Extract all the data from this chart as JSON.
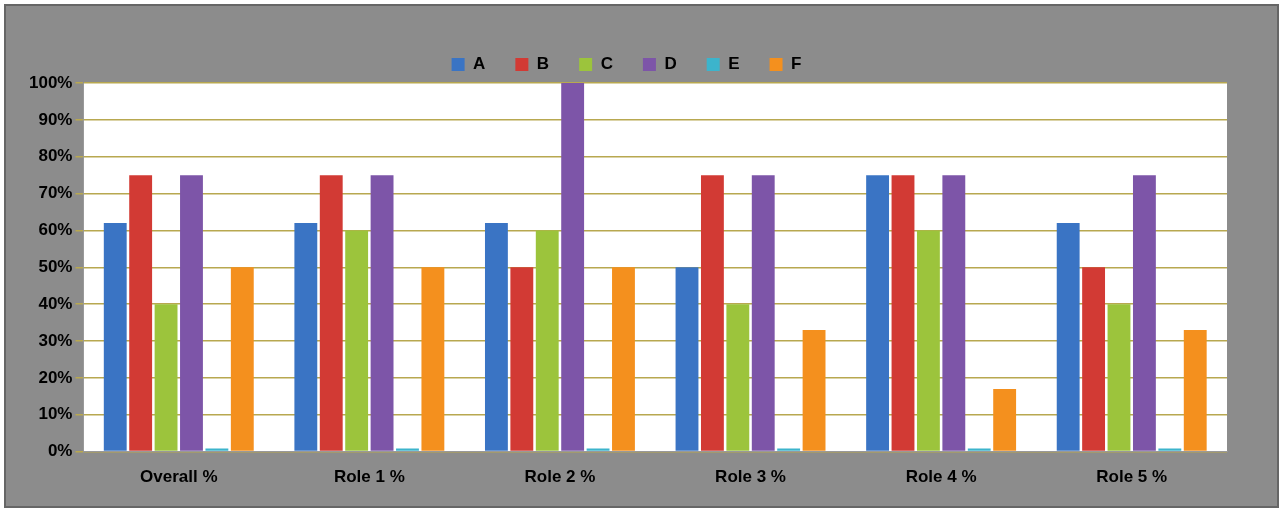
{
  "chart_data": {
    "type": "bar",
    "categories": [
      "Overall %",
      "Role 1 %",
      "Role 2 %",
      "Role 3 %",
      "Role 4 %",
      "Role 5 %"
    ],
    "series": [
      {
        "name": "A",
        "color": "#3a74c4",
        "values": [
          62,
          62,
          62,
          50,
          75,
          62
        ]
      },
      {
        "name": "B",
        "color": "#d23a34",
        "values": [
          75,
          75,
          50,
          75,
          75,
          50
        ]
      },
      {
        "name": "C",
        "color": "#9cc43c",
        "values": [
          40,
          60,
          60,
          40,
          60,
          40
        ]
      },
      {
        "name": "D",
        "color": "#7d55a8",
        "values": [
          75,
          75,
          100,
          75,
          75,
          75
        ]
      },
      {
        "name": "E",
        "color": "#3cb4cc",
        "values": [
          0,
          0,
          0,
          0,
          0,
          0
        ]
      },
      {
        "name": "F",
        "color": "#f4901e",
        "values": [
          50,
          50,
          50,
          33,
          17,
          33
        ]
      }
    ],
    "ylim": [
      0,
      100
    ],
    "yticks": [
      {
        "value": 0,
        "label": "0%"
      },
      {
        "value": 10,
        "label": "10%"
      },
      {
        "value": 20,
        "label": "20%"
      },
      {
        "value": 30,
        "label": "30%"
      },
      {
        "value": 40,
        "label": "40%"
      },
      {
        "value": 50,
        "label": "50%"
      },
      {
        "value": 60,
        "label": "60%"
      },
      {
        "value": 70,
        "label": "70%"
      },
      {
        "value": 80,
        "label": "80%"
      },
      {
        "value": 90,
        "label": "90%"
      },
      {
        "value": 100,
        "label": "100%"
      }
    ],
    "grid": "y",
    "legend": "top"
  }
}
